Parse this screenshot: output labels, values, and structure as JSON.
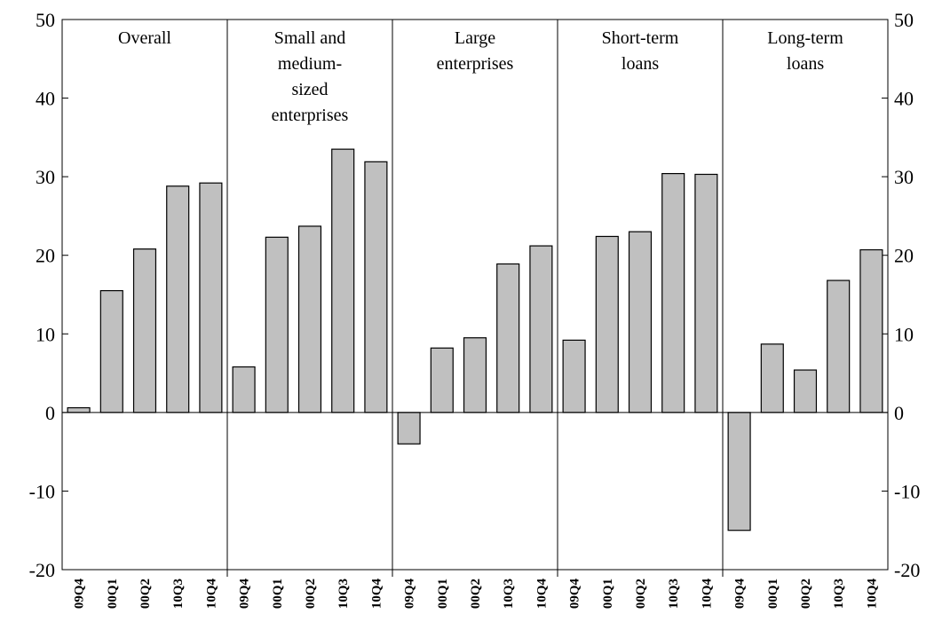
{
  "chart_data": {
    "type": "bar",
    "ylim": [
      -20,
      50
    ],
    "yticks": [
      -20,
      -10,
      0,
      10,
      20,
      30,
      40,
      50
    ],
    "ytick_labels": [
      "-20",
      "-10",
      "0",
      "10",
      "20",
      "30",
      "40",
      "50"
    ],
    "right_axis_mirrored": true,
    "grid": false,
    "bar_fill": "#c0c0c0",
    "bar_stroke": "#000000",
    "categories": [
      "09Q4",
      "00Q1",
      "00Q2",
      "10Q3",
      "10Q4"
    ],
    "groups": [
      {
        "title_lines": [
          "Overall"
        ],
        "values": [
          0.6,
          15.5,
          20.8,
          28.8,
          29.2
        ]
      },
      {
        "title_lines": [
          "Small and",
          "medium-",
          "sized",
          "enterprises"
        ],
        "values": [
          5.8,
          22.3,
          23.7,
          33.5,
          31.9
        ]
      },
      {
        "title_lines": [
          "Large",
          "enterprises"
        ],
        "values": [
          -4.0,
          8.2,
          9.5,
          18.9,
          21.2
        ]
      },
      {
        "title_lines": [
          "Short-term",
          "loans"
        ],
        "values": [
          9.2,
          22.4,
          23.0,
          30.4,
          30.3
        ]
      },
      {
        "title_lines": [
          "Long-term",
          "loans"
        ],
        "values": [
          -15.0,
          8.7,
          5.4,
          16.8,
          20.7
        ]
      }
    ]
  }
}
